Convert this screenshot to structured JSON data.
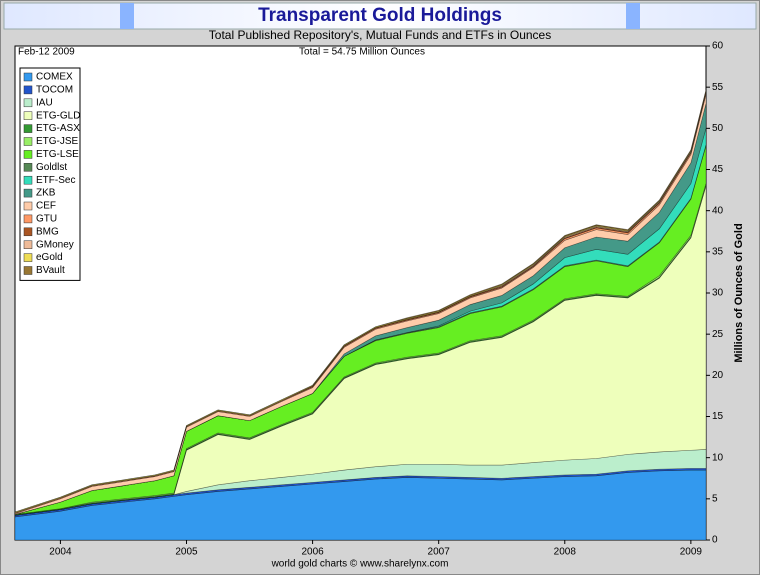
{
  "chart_data": {
    "type": "area",
    "stacked": true,
    "title": "Transparent Gold Holdings",
    "subtitle": "Total Published Repository's, Mutual Funds and ETFs in Ounces",
    "date_label": "Feb-12 2009",
    "total_label": "Total = 54.75 Million Ounces",
    "footer": "world gold charts © www.sharelynx.com",
    "y_label": "Millions of Ounces of Gold",
    "xlim": [
      2003.64,
      2009.12
    ],
    "xticks": [
      2004,
      2005,
      2006,
      2007,
      2008,
      2009
    ],
    "ylim": [
      0,
      60
    ],
    "yticks": [
      0,
      5,
      10,
      15,
      20,
      25,
      30,
      35,
      40,
      45,
      50,
      55,
      60
    ],
    "grid": false,
    "legend": "upper left",
    "x": [
      2003.64,
      2004.0,
      2004.25,
      2004.5,
      2004.75,
      2004.9,
      2005.0,
      2005.25,
      2005.5,
      2005.75,
      2006.0,
      2006.25,
      2006.5,
      2006.75,
      2007.0,
      2007.25,
      2007.5,
      2007.75,
      2008.0,
      2008.25,
      2008.5,
      2008.75,
      2009.0,
      2009.12
    ],
    "series": [
      {
        "name": "COMEX",
        "color": "#3399ee",
        "values": [
          2.8,
          3.5,
          4.2,
          4.6,
          5.0,
          5.3,
          5.5,
          5.9,
          6.2,
          6.5,
          6.8,
          7.1,
          7.4,
          7.6,
          7.5,
          7.4,
          7.3,
          7.5,
          7.7,
          7.8,
          8.2,
          8.4,
          8.5,
          8.5
        ]
      },
      {
        "name": "TOCOM",
        "color": "#2255cc",
        "values": [
          0.2,
          0.2,
          0.2,
          0.2,
          0.2,
          0.2,
          0.2,
          0.2,
          0.2,
          0.2,
          0.2,
          0.2,
          0.2,
          0.2,
          0.2,
          0.2,
          0.2,
          0.2,
          0.2,
          0.2,
          0.2,
          0.2,
          0.2,
          0.2
        ]
      },
      {
        "name": "IAU",
        "color": "#bbeecc",
        "values": [
          0,
          0,
          0,
          0,
          0,
          0,
          0.2,
          0.6,
          0.8,
          0.9,
          1.0,
          1.2,
          1.3,
          1.4,
          1.5,
          1.5,
          1.6,
          1.7,
          1.8,
          1.9,
          2.0,
          2.1,
          2.2,
          2.3
        ]
      },
      {
        "name": "ETG-GLD",
        "color": "#eeffbb",
        "values": [
          0,
          0,
          0,
          0,
          0,
          0,
          5.0,
          6.1,
          5.0,
          6.2,
          7.3,
          11.1,
          12.4,
          12.8,
          13.3,
          14.9,
          15.5,
          17.1,
          19.4,
          19.8,
          19.0,
          21.1,
          25.8,
          32.0
        ]
      },
      {
        "name": "ETG-ASX",
        "color": "#339933",
        "values": [
          0.1,
          0.1,
          0.1,
          0.1,
          0.1,
          0.1,
          0.1,
          0.1,
          0.1,
          0.1,
          0.1,
          0.1,
          0.1,
          0.1,
          0.1,
          0.1,
          0.1,
          0.1,
          0.1,
          0.1,
          0.1,
          0.1,
          0.1,
          0.1
        ]
      },
      {
        "name": "ETG-JSE",
        "color": "#99ee66",
        "values": [
          0,
          0,
          0.1,
          0.1,
          0.1,
          0.1,
          0.1,
          0.1,
          0.1,
          0.1,
          0.1,
          0.1,
          0.1,
          0.1,
          0.1,
          0.1,
          0.1,
          0.1,
          0.1,
          0.1,
          0.1,
          0.2,
          0.2,
          0.2
        ]
      },
      {
        "name": "ETG-LSE",
        "color": "#66ee22",
        "values": [
          0,
          0.8,
          1.4,
          1.6,
          1.8,
          2.1,
          2.1,
          2.1,
          2.1,
          2.2,
          2.3,
          2.5,
          2.7,
          2.9,
          3.1,
          3.3,
          3.5,
          3.7,
          3.9,
          4.0,
          3.6,
          4.0,
          4.4,
          4.6
        ]
      },
      {
        "name": "Goldlst",
        "color": "#558855",
        "values": [
          0,
          0,
          0,
          0,
          0,
          0,
          0,
          0,
          0,
          0,
          0,
          0,
          0.1,
          0.1,
          0.1,
          0.1,
          0.1,
          0.1,
          0.1,
          0.1,
          0.1,
          0.1,
          0.1,
          0.1
        ]
      },
      {
        "name": "ETF-Sec",
        "color": "#33ddbb",
        "values": [
          0,
          0,
          0,
          0,
          0,
          0,
          0,
          0,
          0,
          0,
          0,
          0,
          0,
          0,
          0.1,
          0.2,
          0.4,
          0.6,
          1.0,
          1.3,
          1.4,
          1.6,
          1.8,
          2.0
        ]
      },
      {
        "name": "ZKB",
        "color": "#449988",
        "values": [
          0,
          0,
          0,
          0,
          0,
          0,
          0,
          0,
          0,
          0,
          0,
          0.3,
          0.5,
          0.6,
          0.7,
          0.8,
          0.9,
          1.0,
          1.2,
          1.5,
          1.6,
          2.0,
          2.5,
          3.0
        ]
      },
      {
        "name": "CEF",
        "color": "#ffccaa",
        "values": [
          0.1,
          0.4,
          0.5,
          0.5,
          0.5,
          0.5,
          0.5,
          0.5,
          0.5,
          0.6,
          0.7,
          0.8,
          0.8,
          0.8,
          0.8,
          0.8,
          0.9,
          1.0,
          0.9,
          0.9,
          0.8,
          0.9,
          1.0,
          1.1
        ]
      },
      {
        "name": "GTU",
        "color": "#ff9966",
        "values": [
          0.1,
          0.1,
          0.1,
          0.1,
          0.1,
          0.1,
          0.1,
          0.1,
          0.1,
          0.1,
          0.1,
          0.1,
          0.1,
          0.1,
          0.1,
          0.1,
          0.1,
          0.1,
          0.2,
          0.2,
          0.2,
          0.2,
          0.2,
          0.2
        ]
      },
      {
        "name": "BMG",
        "color": "#aa5522",
        "values": [
          0,
          0,
          0,
          0,
          0,
          0,
          0,
          0,
          0,
          0,
          0.1,
          0.1,
          0.1,
          0.1,
          0.1,
          0.1,
          0.1,
          0.1,
          0.1,
          0.1,
          0.1,
          0.1,
          0.1,
          0.1
        ]
      },
      {
        "name": "GMoney",
        "color": "#eebb99",
        "values": [
          0,
          0,
          0,
          0,
          0,
          0,
          0,
          0,
          0,
          0,
          0,
          0,
          0,
          0,
          0,
          0,
          0.1,
          0.1,
          0.1,
          0.1,
          0.1,
          0.1,
          0.1,
          0.1
        ]
      },
      {
        "name": "eGold",
        "color": "#eedd55",
        "values": [
          0.1,
          0.1,
          0.1,
          0.1,
          0.1,
          0.1,
          0.1,
          0.1,
          0.1,
          0.1,
          0.1,
          0.1,
          0.1,
          0.1,
          0.1,
          0.1,
          0.1,
          0.1,
          0.1,
          0.1,
          0.1,
          0.1,
          0.1,
          0.1
        ]
      },
      {
        "name": "BVault",
        "color": "#997733",
        "values": [
          0,
          0,
          0,
          0,
          0,
          0,
          0,
          0,
          0,
          0,
          0,
          0,
          0,
          0.1,
          0.1,
          0.1,
          0.1,
          0.1,
          0.1,
          0.1,
          0.1,
          0.1,
          0.1,
          0.1
        ]
      }
    ]
  }
}
